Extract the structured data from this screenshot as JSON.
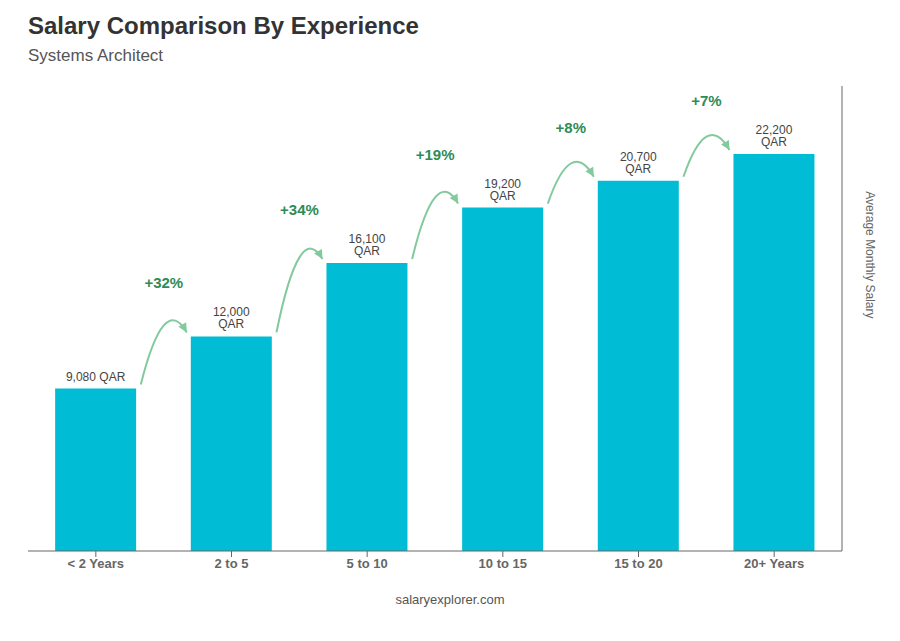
{
  "chart_data": {
    "type": "bar",
    "title": "Salary Comparison By Experience",
    "subtitle": "Systems Architect",
    "categories": [
      "< 2 Years",
      "2 to 5",
      "5 to 10",
      "10 to 15",
      "15 to 20",
      "20+ Years"
    ],
    "values": [
      9080,
      12000,
      16100,
      19200,
      20700,
      22200
    ],
    "value_labels": [
      "9,080 QAR",
      "12,000 QAR",
      "16,100 QAR",
      "19,200 QAR",
      "20,700 QAR",
      "22,200 QAR"
    ],
    "data_labels": true,
    "color": "#00bcd4",
    "ylim": [
      0,
      26000
    ],
    "ylabel": "Average Monthly Salary",
    "annotations": [
      "+32%",
      "+34%",
      "+19%",
      "+8%",
      "+7%"
    ],
    "footer": "salaryexplorer.com",
    "grid": false,
    "tick_labels": "x"
  }
}
